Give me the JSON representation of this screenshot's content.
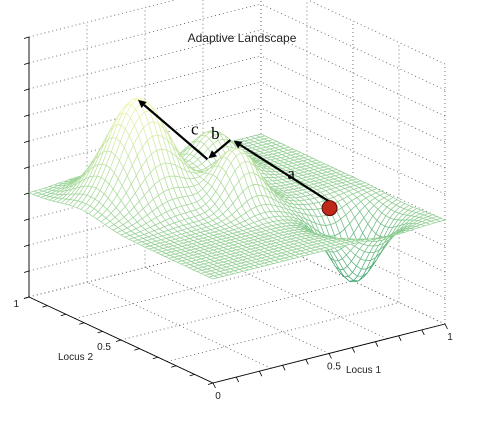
{
  "chart_data": {
    "type": "surface",
    "title": "Adaptive Landscape",
    "xlabel": "Locus 1",
    "ylabel": "Locus 2",
    "xlim": [
      0,
      1
    ],
    "ylim": [
      0,
      1
    ],
    "x_ticks": [
      "0",
      "0.5",
      "1"
    ],
    "y_ticks": [
      "0.5",
      "1"
    ],
    "grid": true,
    "colormap": [
      "#2f9a6a",
      "#9fd59a",
      "#f3f7b0"
    ],
    "peaks": [
      {
        "x": 0.25,
        "y": 0.72,
        "height": 1.0
      },
      {
        "x": 0.5,
        "y": 0.5,
        "height": 0.55
      },
      {
        "x": 0.62,
        "y": 0.78,
        "height": 0.42
      }
    ],
    "valley": {
      "x": 0.78,
      "y": 0.22,
      "depth": -0.65
    },
    "ball": {
      "x": 0.78,
      "y": 0.35,
      "z": -0.05,
      "color": "#c0281a"
    },
    "arrows": [
      {
        "label": "a",
        "from": [
          0.8,
          0.38,
          -0.02
        ],
        "to": [
          0.66,
          0.72,
          0.36
        ]
      },
      {
        "label": "b",
        "from": [
          0.63,
          0.7,
          0.4
        ],
        "to": [
          0.44,
          0.58,
          0.43
        ]
      },
      {
        "label": "c",
        "from": [
          0.42,
          0.56,
          0.45
        ],
        "to": [
          0.24,
          0.71,
          1.0
        ]
      }
    ]
  }
}
